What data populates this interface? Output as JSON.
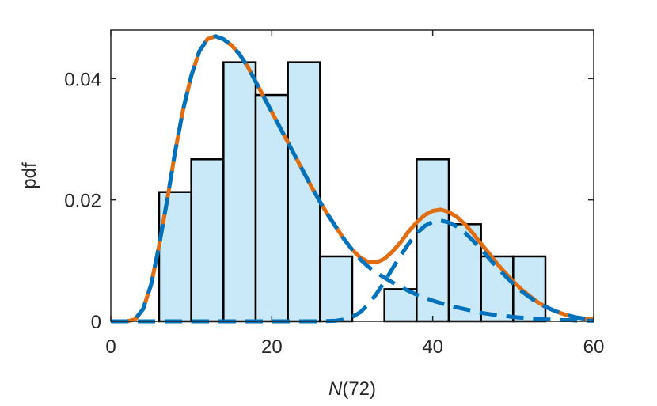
{
  "chart_data": {
    "type": "bar",
    "xlabel_italic": "N",
    "xlabel_rest": "(72)",
    "ylabel": "pdf",
    "xlim": [
      0,
      60
    ],
    "ylim": [
      0,
      0.048
    ],
    "xticks": [
      0,
      20,
      40,
      60
    ],
    "xtick_labels": [
      "0",
      "20",
      "40",
      "60"
    ],
    "yticks": [
      0,
      0.02,
      0.04
    ],
    "ytick_labels": [
      "0",
      "0.02",
      "0.04"
    ],
    "grid": false,
    "histogram": {
      "bin_edges": [
        6,
        10,
        14,
        18,
        22,
        26,
        30,
        34,
        38,
        42,
        46,
        50,
        54
      ],
      "values": [
        0.0213,
        0.0267,
        0.0427,
        0.0373,
        0.0427,
        0.0107,
        0.0,
        0.0053,
        0.0267,
        0.016,
        0.0107,
        0.0107
      ],
      "fill_color": "#c9e9f8",
      "edge_color": "#000000"
    },
    "series": [
      {
        "style": "solid",
        "color": "#e06d12",
        "x": [
          0,
          2,
          3,
          4,
          5,
          6,
          7,
          8,
          9,
          10,
          11,
          12,
          13,
          14,
          15,
          16,
          17,
          18,
          19,
          20,
          21,
          22,
          23,
          24,
          25,
          26,
          27,
          28,
          29,
          30,
          31,
          32,
          33,
          34,
          35,
          36,
          37,
          38,
          39,
          40,
          41,
          42,
          43,
          44,
          45,
          46,
          47,
          48,
          49,
          50,
          51,
          52,
          53,
          54,
          55,
          56,
          57,
          58,
          59,
          60
        ],
        "y": [
          0,
          0,
          0.0003,
          0.002,
          0.006,
          0.0125,
          0.02,
          0.028,
          0.035,
          0.0405,
          0.0445,
          0.0465,
          0.047,
          0.0465,
          0.0455,
          0.044,
          0.042,
          0.0395,
          0.037,
          0.0345,
          0.032,
          0.0295,
          0.027,
          0.0245,
          0.022,
          0.0197,
          0.0175,
          0.0155,
          0.0135,
          0.0118,
          0.0105,
          0.0098,
          0.0097,
          0.0103,
          0.0115,
          0.013,
          0.0148,
          0.0163,
          0.0175,
          0.0182,
          0.0184,
          0.018,
          0.0172,
          0.016,
          0.0145,
          0.0128,
          0.0112,
          0.0095,
          0.008,
          0.0066,
          0.0053,
          0.0042,
          0.0032,
          0.0024,
          0.0018,
          0.0013,
          0.0009,
          0.0006,
          0.0004,
          0.0003
        ]
      },
      {
        "style": "dashed",
        "color": "#0072bd",
        "x": [
          0,
          2,
          3,
          4,
          5,
          6,
          7,
          8,
          9,
          10,
          11,
          12,
          13,
          14,
          15,
          16,
          17,
          18,
          19,
          20,
          21,
          22,
          23,
          24,
          25,
          26,
          27,
          28,
          29,
          30,
          31,
          32,
          33,
          34,
          35,
          36,
          37,
          38,
          39,
          40,
          41,
          42,
          43,
          44,
          45,
          46,
          47,
          48,
          49,
          50,
          51,
          52,
          53,
          54,
          55,
          56,
          57,
          58,
          59,
          60
        ],
        "y": [
          0,
          0,
          0.0003,
          0.002,
          0.006,
          0.0125,
          0.02,
          0.028,
          0.035,
          0.0405,
          0.0445,
          0.0465,
          0.047,
          0.0465,
          0.0455,
          0.044,
          0.042,
          0.0395,
          0.037,
          0.0345,
          0.032,
          0.0295,
          0.027,
          0.0245,
          0.022,
          0.0197,
          0.0175,
          0.0155,
          0.0135,
          0.0118,
          0.0102,
          0.009,
          0.008,
          0.0072,
          0.0064,
          0.0057,
          0.005,
          0.0044,
          0.0039,
          0.0034,
          0.003,
          0.0026,
          0.0023,
          0.002,
          0.0017,
          0.0014,
          0.0012,
          0.001,
          0.0009,
          0.0007,
          0.0006,
          0.0005,
          0.0004,
          0.0003,
          0.0003,
          0.0002,
          0.0002,
          0.0001,
          0.0001,
          0.0001
        ]
      },
      {
        "style": "dashed",
        "color": "#0072bd",
        "x": [
          0,
          20,
          26,
          28,
          29,
          30,
          31,
          32,
          33,
          34,
          35,
          36,
          37,
          38,
          39,
          40,
          41,
          42,
          43,
          44,
          45,
          46,
          47,
          48,
          49,
          50,
          51,
          52,
          53,
          54,
          55,
          56,
          57,
          58,
          59,
          60
        ],
        "y": [
          0,
          0,
          0,
          0.0001,
          0.0003,
          0.0007,
          0.0015,
          0.0028,
          0.0045,
          0.0065,
          0.0087,
          0.0108,
          0.0128,
          0.0145,
          0.0157,
          0.0164,
          0.0166,
          0.0163,
          0.0156,
          0.0146,
          0.0133,
          0.0119,
          0.0104,
          0.0089,
          0.0075,
          0.0062,
          0.005,
          0.004,
          0.0031,
          0.0024,
          0.0018,
          0.0013,
          0.0009,
          0.0006,
          0.0004,
          0.0003
        ]
      }
    ]
  }
}
